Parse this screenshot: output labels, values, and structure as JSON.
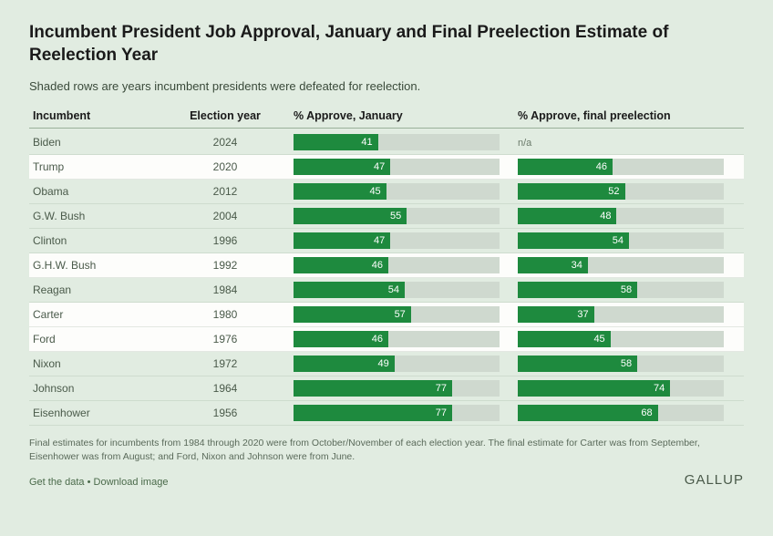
{
  "title": "Incumbent President Job Approval, January and Final Preelection Estimate of Reelection Year",
  "subtitle": "Shaded rows are years incumbent presidents were defeated for reelection.",
  "columns": {
    "c1": "Incumbent",
    "c2": "Election year",
    "c3": "% Approve, January",
    "c4": "% Approve, final preelection"
  },
  "rows": [
    {
      "name": "Biden",
      "year": "2024",
      "jan": 41,
      "final": null,
      "defeated": false
    },
    {
      "name": "Trump",
      "year": "2020",
      "jan": 47,
      "final": 46,
      "defeated": true
    },
    {
      "name": "Obama",
      "year": "2012",
      "jan": 45,
      "final": 52,
      "defeated": false
    },
    {
      "name": "G.W. Bush",
      "year": "2004",
      "jan": 55,
      "final": 48,
      "defeated": false
    },
    {
      "name": "Clinton",
      "year": "1996",
      "jan": 47,
      "final": 54,
      "defeated": false
    },
    {
      "name": "G.H.W. Bush",
      "year": "1992",
      "jan": 46,
      "final": 34,
      "defeated": true
    },
    {
      "name": "Reagan",
      "year": "1984",
      "jan": 54,
      "final": 58,
      "defeated": false
    },
    {
      "name": "Carter",
      "year": "1980",
      "jan": 57,
      "final": 37,
      "defeated": true
    },
    {
      "name": "Ford",
      "year": "1976",
      "jan": 46,
      "final": 45,
      "defeated": true
    },
    {
      "name": "Nixon",
      "year": "1972",
      "jan": 49,
      "final": 58,
      "defeated": false
    },
    {
      "name": "Johnson",
      "year": "1964",
      "jan": 77,
      "final": 74,
      "defeated": false
    },
    {
      "name": "Eisenhower",
      "year": "1956",
      "jan": 77,
      "final": 68,
      "defeated": false
    }
  ],
  "na_text": "n/a",
  "bar_colors": {
    "fill": "#1e8a3e",
    "track": "#cfd9cf"
  },
  "bar_max": 100,
  "footnote": "Final estimates for incumbents from 1984 through 2020 were from October/November of each election year. The final estimate for Carter was from September, Eisenhower was from August; and Ford, Nixon and Johnson were from June.",
  "links": {
    "get_data": "Get the data",
    "sep": " • ",
    "download": "Download image"
  },
  "brand": "GALLUP",
  "background_color": "#e1ece1",
  "defeated_row_color": "#fdfdfb"
}
